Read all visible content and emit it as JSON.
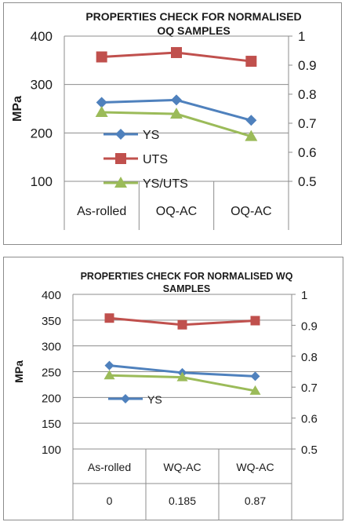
{
  "chart_data": [
    {
      "type": "line",
      "title_lines": [
        "PROPERTIES CHECK FOR NORMALISED",
        "OQ SAMPLES"
      ],
      "ylabel": "MPa",
      "categories": [
        "As-rolled",
        "OQ-AC",
        "OQ-AC"
      ],
      "ylim": [
        100,
        400
      ],
      "yticks": [
        "100",
        "200",
        "300",
        "400"
      ],
      "y2lim": [
        0.5,
        1
      ],
      "y2ticks": [
        "0.5",
        "0.6",
        "0.7",
        "0.8",
        "0.9",
        "1"
      ],
      "grid": "horizontal",
      "legend_position": "center-left",
      "series": [
        {
          "name": "YS",
          "axis": "left",
          "marker": "diamond",
          "color": "#4f81bd",
          "values": [
            263,
            268,
            226
          ]
        },
        {
          "name": "UTS",
          "axis": "left",
          "marker": "square",
          "color": "#c0504d",
          "values": [
            357,
            366,
            348
          ]
        },
        {
          "name": "YS/UTS",
          "axis": "right",
          "marker": "triangle",
          "color": "#9bbb59",
          "values": [
            0.738,
            0.732,
            0.655
          ]
        }
      ]
    },
    {
      "type": "line",
      "title_lines": [
        "PROPERTIES CHECK FOR NORMALISED WQ",
        "SAMPLES"
      ],
      "ylabel": "MPa",
      "categories": [
        "As-rolled",
        "WQ-AC",
        "WQ-AC"
      ],
      "table_row": [
        "0",
        "0.185",
        "0.87"
      ],
      "ylim": [
        100,
        400
      ],
      "yticks": [
        "100",
        "150",
        "200",
        "250",
        "300",
        "350",
        "400"
      ],
      "y2lim": [
        0.5,
        1
      ],
      "y2ticks": [
        "0.5",
        "0.6",
        "0.7",
        "0.8",
        "0.9",
        "1"
      ],
      "grid": "horizontal",
      "legend_position": "center-left",
      "series": [
        {
          "name": "YS",
          "axis": "left",
          "marker": "diamond",
          "color": "#4f81bd",
          "values": [
            262,
            248,
            241
          ]
        },
        {
          "name": "",
          "axis": "left",
          "marker": "square",
          "color": "#c0504d",
          "values": [
            354,
            341,
            349
          ]
        },
        {
          "name": "",
          "axis": "right",
          "marker": "triangle",
          "color": "#9bbb59",
          "values": [
            0.738,
            0.732,
            0.688
          ]
        }
      ]
    }
  ]
}
